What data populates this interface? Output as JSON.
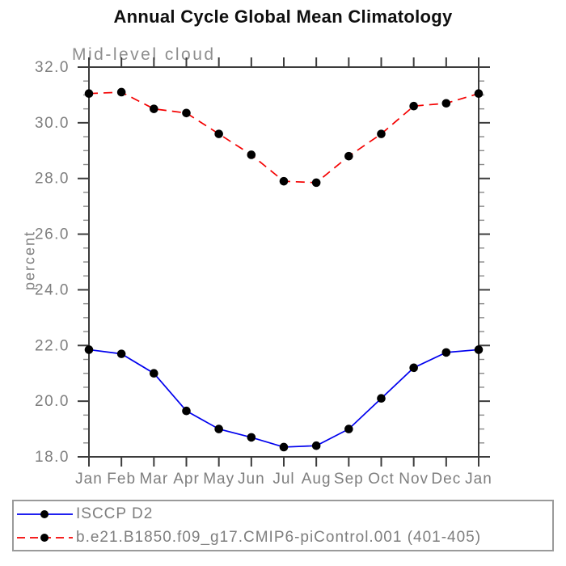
{
  "title": "Annual Cycle Global Mean Climatology",
  "colors": {
    "axis": "#3c3c3c",
    "minor_tick": "#8a8a8a",
    "label_gray": "#7e7e7e",
    "subtitle_gray": "#8e8e8e",
    "title_black": "#0f0f0f",
    "legend_border": "#9a9a9a",
    "series_blue": "#0000ee",
    "series_red": "#f40000",
    "marker_black": "#000000"
  },
  "chart_data": {
    "type": "line",
    "title": "Annual Cycle Global Mean Climatology",
    "subtitle": "Mid-level cloud",
    "xlabel": "",
    "ylabel": "percent",
    "categories": [
      "Jan",
      "Feb",
      "Mar",
      "Apr",
      "May",
      "Jun",
      "Jul",
      "Aug",
      "Sep",
      "Oct",
      "Nov",
      "Dec",
      "Jan"
    ],
    "ylim": [
      18.0,
      32.0
    ],
    "ytick_major_step": 2.0,
    "ytick_minor_step": 0.5,
    "ytick_labels": [
      "18.0",
      "20.0",
      "22.0",
      "24.0",
      "26.0",
      "28.0",
      "30.0",
      "32.0"
    ],
    "grid": false,
    "legend_position": "bottom",
    "series": [
      {
        "name": "ISCCP D2",
        "line_style": "solid",
        "color_key": "series_blue",
        "marker": "filled-circle",
        "values": [
          21.85,
          21.7,
          21.0,
          19.65,
          19.0,
          18.7,
          18.35,
          18.4,
          19.0,
          20.1,
          21.2,
          21.75,
          21.85
        ]
      },
      {
        "name": "b.e21.B1850.f09_g17.CMIP6-piControl.001 (401-405)",
        "line_style": "dashed",
        "color_key": "series_red",
        "marker": "filled-circle",
        "values": [
          31.05,
          31.1,
          30.5,
          30.35,
          29.6,
          28.85,
          27.9,
          27.85,
          28.8,
          29.6,
          30.6,
          30.7,
          31.05
        ]
      }
    ]
  }
}
